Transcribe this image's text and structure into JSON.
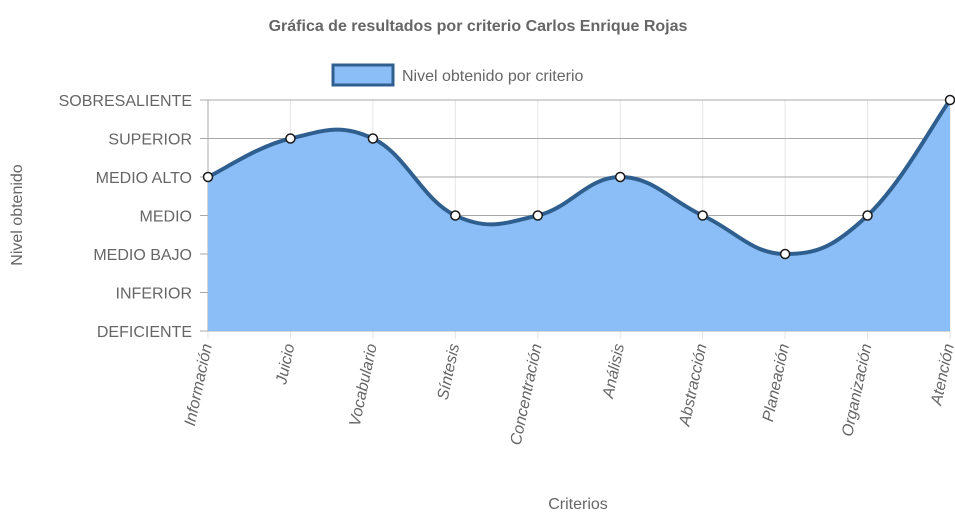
{
  "chart_data": {
    "type": "area",
    "title": "Gráfica de resultados por criterio Carlos Enrique Rojas",
    "xlabel": "Criterios",
    "ylabel": "Nivel obtenido",
    "categories": [
      "Información",
      "Juicio",
      "Vocabulario",
      "Síntesis",
      "Concentración",
      "Análisis",
      "Abstracción",
      "Planeación",
      "Organización",
      "Atención"
    ],
    "y_levels": [
      "DEFICIENTE",
      "INFERIOR",
      "MEDIO BAJO",
      "MEDIO",
      "MEDIO ALTO",
      "SUPERIOR",
      "SOBRESALIENTE"
    ],
    "ylim": [
      0,
      6
    ],
    "series": [
      {
        "name": "Nivel obtenido por criterio",
        "values": [
          4,
          5,
          5,
          3,
          3,
          4,
          3,
          2,
          3,
          6
        ],
        "value_labels": [
          "MEDIO ALTO",
          "SUPERIOR",
          "SUPERIOR",
          "MEDIO",
          "MEDIO",
          "MEDIO ALTO",
          "MEDIO",
          "MEDIO BAJO",
          "MEDIO",
          "SOBRESALIENTE"
        ]
      }
    ],
    "legend_position": "top",
    "grid": true,
    "colors": {
      "fill": "#8bbdf7",
      "line": "#2f5f8f",
      "point_fill": "#ffffff",
      "point_stroke": "#1a1a1a",
      "grid": "#e6e6e6",
      "grid_y": "#a8a8a8",
      "text": "#666666"
    }
  }
}
